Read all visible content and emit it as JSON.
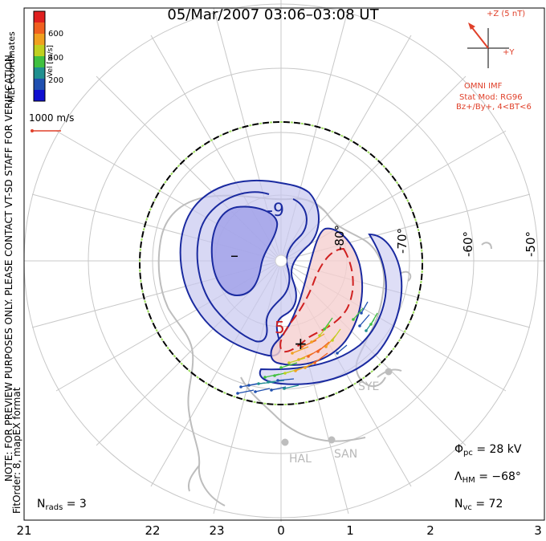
{
  "title": "05/Mar/2007 03:06–03:08 UT",
  "mlt_ticks": [
    "21",
    "22",
    "23",
    "0",
    "1",
    "2",
    "3"
  ],
  "lat_labels": [
    "-80°",
    "-70°",
    "-60°",
    "-50°"
  ],
  "coords_label": "MLT coordinates",
  "colorbar": {
    "unit_label": "Vel [m/s]",
    "ticks": [
      "600",
      "400",
      "200"
    ],
    "colors": [
      "#e02020",
      "#f06020",
      "#f0a020",
      "#c0d020",
      "#40c040",
      "#209090",
      "#2050b0",
      "#1010d0"
    ]
  },
  "vector_scale_label": "1000 m/s",
  "imf": {
    "z_label": "+Z (5 nT)",
    "y_label": "+Y",
    "source": "OMNI IMF",
    "model_line1": "Stat Mod: RG96",
    "model_line2": "Bz+/By+, 4<BT<6",
    "arrow_color": "#e0402a"
  },
  "contour_labels": {
    "neg": "-9",
    "pos": "5",
    "min_marker": "–",
    "max_marker": "+"
  },
  "sites": [
    "SYE",
    "HAL",
    "SAN"
  ],
  "stats": {
    "phi_symbol": "Φ",
    "phi_sub": "pc",
    "phi_value": "= 28 kV",
    "lambda_symbol": "Λ",
    "lambda_sub": "HM",
    "lambda_value": "= −68°",
    "nvc_symbol": "N",
    "nvc_sub": "vc",
    "nvc_value": "= 72",
    "nrads_symbol": "N",
    "nrads_sub": "rads",
    "nrads_value": "= 3"
  },
  "note_line1": "NOTE: FOR PREVIEW PURPOSES ONLY. PLEASE CONTACT VT-SD STAFF FOR VERIFICATION.",
  "note_line2": "FitOrder: 8, mapEX format",
  "colors": {
    "neg_fill": "#c8c8f0",
    "neg_fill_inner": "#a0a0e8",
    "neg_line": "#1a2aa0",
    "pos_fill": "#f5d0d0",
    "pos_line": "#d02020",
    "grid": "#c8c8c8",
    "coast": "#bdbdbd",
    "boundary": "#000000",
    "boundary_dash": "#a0e060"
  }
}
